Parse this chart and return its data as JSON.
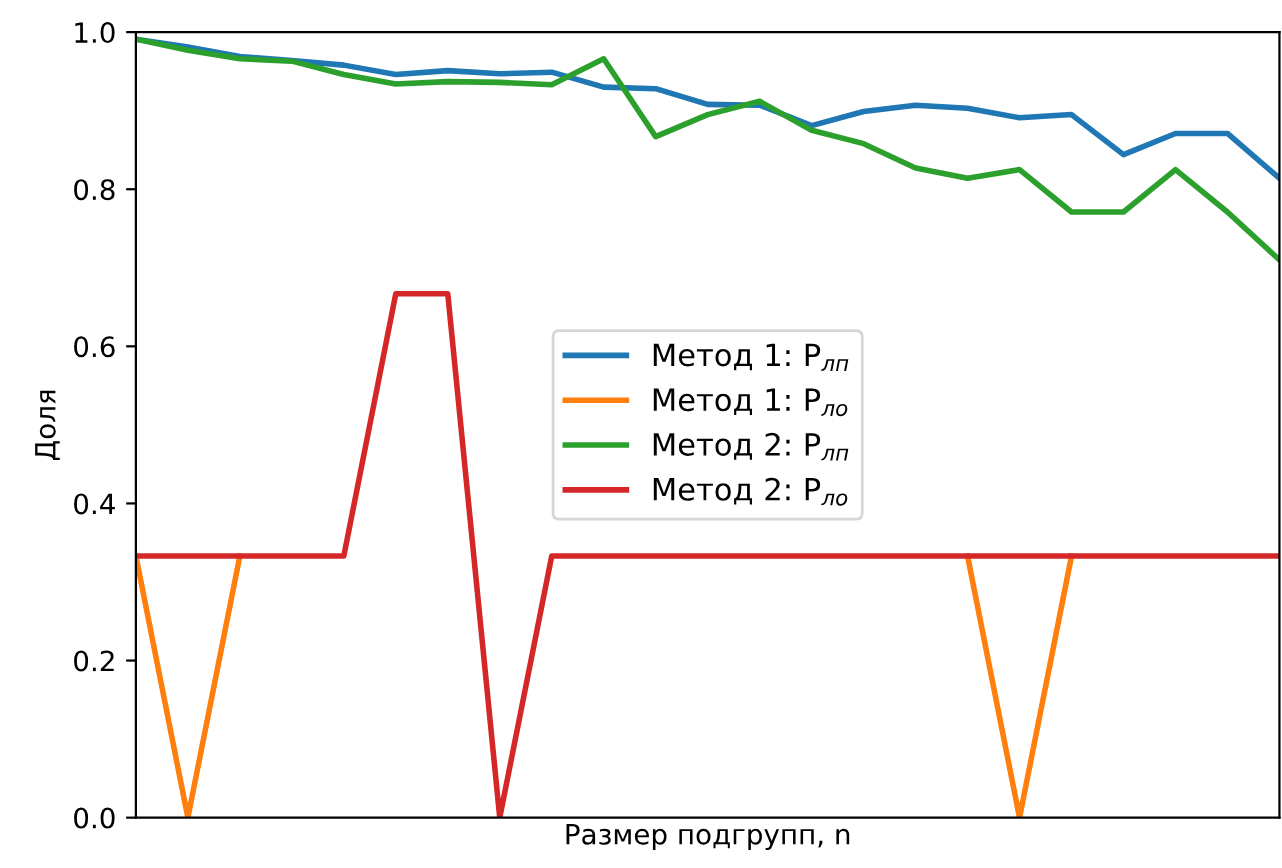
{
  "chart_data": {
    "type": "line",
    "xlabel": "Размер подгрупп, n",
    "ylabel": "Доля",
    "categories": [
      null,
      null,
      null,
      null,
      null,
      null,
      null,
      null,
      null,
      null,
      null,
      null,
      null,
      null,
      null,
      null,
      null,
      null,
      null,
      null,
      null,
      null,
      null
    ],
    "series": [
      {
        "name": "Метод 1: P$_{лп}$",
        "color": "#1f77b4",
        "values": [
          0.991,
          0.981,
          0.969,
          0.964,
          0.958,
          0.946,
          0.951,
          0.947,
          0.949,
          0.93,
          0.928,
          0.908,
          0.907,
          0.881,
          0.899,
          0.907,
          0.903,
          0.891,
          0.895,
          0.844,
          0.871,
          0.871,
          0.814
        ]
      },
      {
        "name": "Метод 1: P$_{ло}$",
        "color": "#ff7f0e",
        "values": [
          0.333,
          0,
          0.333,
          null,
          null,
          null,
          null,
          null,
          null,
          null,
          null,
          null,
          null,
          null,
          null,
          null,
          0.333,
          0,
          0.333,
          null,
          null,
          null,
          null
        ]
      },
      {
        "name": "Метод 2: P$_{лп}$",
        "color": "#2ca02c",
        "values": [
          0.991,
          0.977,
          0.966,
          0.963,
          0.946,
          0.934,
          0.937,
          0.936,
          0.933,
          0.966,
          0.867,
          0.895,
          0.912,
          0.875,
          0.858,
          0.827,
          0.814,
          0.825,
          0.771,
          0.771,
          0.825,
          0.771,
          0.71
        ]
      },
      {
        "name": "Метод 2: P$_{ло}$",
        "color": "#d62728",
        "values": [
          0.333,
          0.333,
          0.333,
          0.333,
          0.333,
          0.667,
          0.667,
          0,
          0.333,
          0.333,
          0.333,
          0.333,
          0.333,
          0.333,
          0.333,
          0.333,
          0.333,
          0.333,
          0.333,
          0.333,
          0.333,
          0.333,
          0.333
        ]
      }
    ],
    "ylim": [
      0,
      1
    ],
    "yticks": [
      {
        "value": 0,
        "label": "0.0"
      },
      0.2,
      0.4,
      0.6,
      0.8,
      {
        "value": 1,
        "label": "1.0"
      }
    ],
    "tick_labels": "y",
    "legend": "center",
    "grid": false,
    "marker": "none",
    "line_style": "solid"
  }
}
